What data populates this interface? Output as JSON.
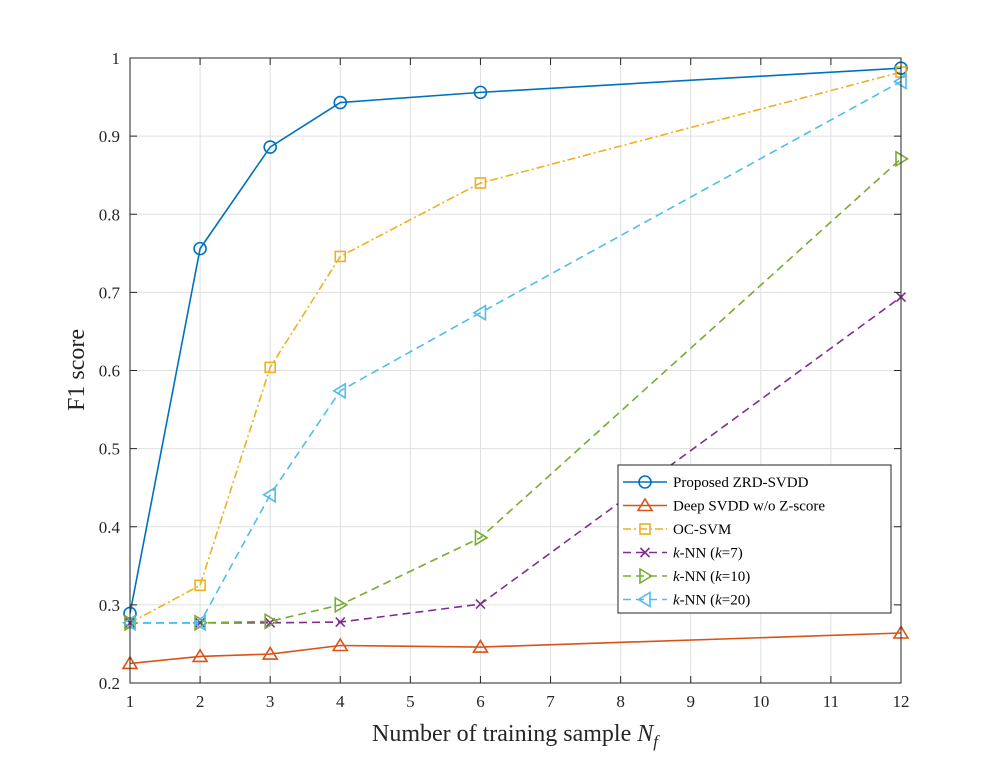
{
  "chart_data": {
    "type": "line",
    "title": "",
    "xlabel": "Number of training sample ",
    "xlabel_var": "N",
    "xlabel_sub": "f",
    "ylabel": "F1 score",
    "xlim": [
      1,
      12
    ],
    "ylim": [
      0.2,
      1.0
    ],
    "xticks": [
      1,
      2,
      3,
      4,
      5,
      6,
      7,
      8,
      9,
      10,
      11,
      12
    ],
    "yticks": [
      0.2,
      0.3,
      0.4,
      0.5,
      0.6,
      0.7,
      0.8,
      0.9,
      1.0
    ],
    "ytick_labels": [
      "0.2",
      "0.3",
      "0.4",
      "0.5",
      "0.6",
      "0.7",
      "0.8",
      "0.9",
      "1"
    ],
    "grid": true,
    "legend_position": "lower-right",
    "x": [
      1,
      2,
      3,
      4,
      6,
      12
    ],
    "series": [
      {
        "name": "Proposed ZRD-SVDD",
        "legend_parts": [
          {
            "t": "Proposed ZRD-SVDD",
            "i": false
          }
        ],
        "values": [
          0.289,
          0.756,
          0.886,
          0.943,
          0.956,
          0.987
        ],
        "color": "#0072BD",
        "dash": "",
        "marker": "circle"
      },
      {
        "name": "Deep SVDD w/o Z-score",
        "legend_parts": [
          {
            "t": "Deep SVDD w/o Z-score",
            "i": false
          }
        ],
        "values": [
          0.225,
          0.234,
          0.237,
          0.248,
          0.246,
          0.264
        ],
        "color": "#D95319",
        "dash": "",
        "marker": "triangle-up"
      },
      {
        "name": "OC-SVM",
        "legend_parts": [
          {
            "t": "OC-SVM",
            "i": false
          }
        ],
        "values": [
          0.277,
          0.325,
          0.604,
          0.746,
          0.84,
          0.982
        ],
        "color": "#EDB120",
        "dash": "8,3,2,3",
        "marker": "square"
      },
      {
        "name": "k-NN (k=7)",
        "legend_parts": [
          {
            "t": "k",
            "i": true
          },
          {
            "t": "-NN (",
            "i": false
          },
          {
            "t": "k",
            "i": true
          },
          {
            "t": "=7)",
            "i": false
          }
        ],
        "values": [
          0.277,
          0.277,
          0.277,
          0.278,
          0.301,
          0.694
        ],
        "color": "#7E2F8E",
        "dash": "8,5",
        "marker": "x"
      },
      {
        "name": "k-NN (k=10)",
        "legend_parts": [
          {
            "t": "k",
            "i": true
          },
          {
            "t": "-NN (",
            "i": false
          },
          {
            "t": "k",
            "i": true
          },
          {
            "t": "=10)",
            "i": false
          }
        ],
        "values": [
          0.277,
          0.277,
          0.279,
          0.3,
          0.386,
          0.871
        ],
        "color": "#77AC30",
        "dash": "8,5",
        "marker": "triangle-right"
      },
      {
        "name": "k-NN (k=20)",
        "legend_parts": [
          {
            "t": "k",
            "i": true
          },
          {
            "t": "-NN (",
            "i": false
          },
          {
            "t": "k",
            "i": true
          },
          {
            "t": "=20)",
            "i": false
          }
        ],
        "values": [
          0.277,
          0.277,
          0.441,
          0.574,
          0.674,
          0.97
        ],
        "color": "#4DBEEE",
        "dash": "8,5",
        "marker": "triangle-left"
      }
    ]
  }
}
